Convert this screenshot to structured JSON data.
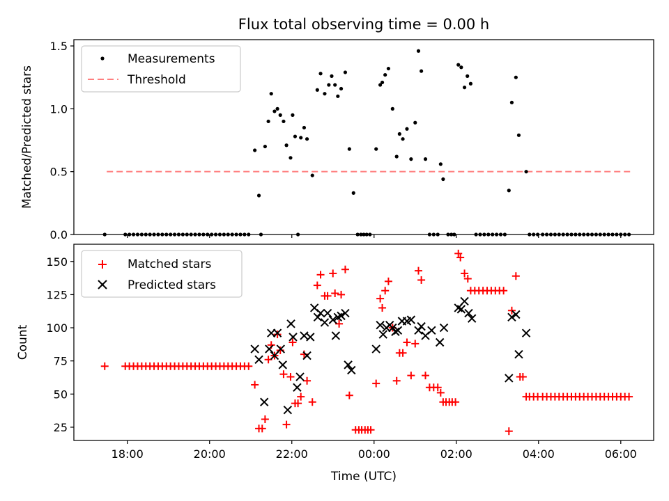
{
  "chart_data": {
    "title": "Flux total observing time = 0.00 h",
    "xlabel": "Time (UTC)",
    "x_unit": "hours since 00:00 UTC",
    "xlim": [
      -7.3,
      6.8
    ],
    "x_ticks": [
      {
        "label": "18:00",
        "value": -6
      },
      {
        "label": "20:00",
        "value": -4
      },
      {
        "label": "22:00",
        "value": -2
      },
      {
        "label": "00:00",
        "value": 0
      },
      {
        "label": "02:00",
        "value": 2
      },
      {
        "label": "04:00",
        "value": 4
      },
      {
        "label": "06:00",
        "value": 6
      }
    ],
    "top": {
      "type": "scatter",
      "ylabel": "Matched/Predicted stars",
      "ylim": [
        0,
        1.55
      ],
      "y_ticks": [
        {
          "label": "0.0",
          "value": 0
        },
        {
          "label": "0.5",
          "value": 0.5
        },
        {
          "label": "1.0",
          "value": 1.0
        },
        {
          "label": "1.5",
          "value": 1.5
        }
      ],
      "legend": {
        "position": "upper-left",
        "measurements_label": "Measurements",
        "threshold_label": "Threshold"
      },
      "threshold": {
        "value": 0.5,
        "x": [
          -6.5,
          6.25
        ],
        "color": "#ff7f7f"
      },
      "measurements": [
        [
          -6.55,
          0
        ],
        [
          -6.05,
          0
        ],
        [
          -5.95,
          0
        ],
        [
          -5.85,
          0
        ],
        [
          -5.75,
          0
        ],
        [
          -5.65,
          0
        ],
        [
          -5.55,
          0
        ],
        [
          -5.45,
          0
        ],
        [
          -5.35,
          0
        ],
        [
          -5.25,
          0
        ],
        [
          -5.15,
          0
        ],
        [
          -5.05,
          0
        ],
        [
          -4.95,
          0
        ],
        [
          -4.85,
          0
        ],
        [
          -4.75,
          0
        ],
        [
          -4.65,
          0
        ],
        [
          -4.55,
          0
        ],
        [
          -4.45,
          0
        ],
        [
          -4.35,
          0
        ],
        [
          -4.25,
          0
        ],
        [
          -4.15,
          0
        ],
        [
          -4.05,
          0
        ],
        [
          -3.95,
          0
        ],
        [
          -3.85,
          0
        ],
        [
          -3.75,
          0
        ],
        [
          -3.65,
          0
        ],
        [
          -3.55,
          0
        ],
        [
          -3.45,
          0
        ],
        [
          -3.35,
          0
        ],
        [
          -3.25,
          0
        ],
        [
          -3.15,
          0
        ],
        [
          -3.05,
          0
        ],
        [
          -2.9,
          0.67
        ],
        [
          -2.8,
          0.31
        ],
        [
          -2.75,
          0
        ],
        [
          -2.65,
          0.7
        ],
        [
          -2.57,
          0.9
        ],
        [
          -2.5,
          1.12
        ],
        [
          -2.42,
          0.98
        ],
        [
          -2.35,
          1.0
        ],
        [
          -2.28,
          0.95
        ],
        [
          -2.2,
          0.9
        ],
        [
          -2.13,
          0.71
        ],
        [
          -2.03,
          0.61
        ],
        [
          -1.98,
          0.95
        ],
        [
          -1.92,
          0.78
        ],
        [
          -1.85,
          0
        ],
        [
          -1.78,
          0.77
        ],
        [
          -1.7,
          0.85
        ],
        [
          -1.63,
          0.76
        ],
        [
          -1.5,
          0.47
        ],
        [
          -1.38,
          1.15
        ],
        [
          -1.3,
          1.28
        ],
        [
          -1.2,
          1.12
        ],
        [
          -1.1,
          1.19
        ],
        [
          -1.03,
          1.26
        ],
        [
          -0.95,
          1.19
        ],
        [
          -0.88,
          1.1
        ],
        [
          -0.8,
          1.16
        ],
        [
          -0.7,
          1.29
        ],
        [
          -0.6,
          0.68
        ],
        [
          -0.5,
          0.33
        ],
        [
          -0.4,
          0
        ],
        [
          -0.32,
          0
        ],
        [
          -0.25,
          0
        ],
        [
          -0.18,
          0
        ],
        [
          -0.1,
          0
        ],
        [
          0.05,
          0.68
        ],
        [
          0.15,
          1.19
        ],
        [
          0.2,
          1.21
        ],
        [
          0.27,
          1.27
        ],
        [
          0.35,
          1.32
        ],
        [
          0.45,
          1.0
        ],
        [
          0.55,
          0.62
        ],
        [
          0.62,
          0.8
        ],
        [
          0.7,
          0.76
        ],
        [
          0.8,
          0.84
        ],
        [
          0.9,
          0.6
        ],
        [
          1.0,
          0.89
        ],
        [
          1.08,
          1.46
        ],
        [
          1.15,
          1.3
        ],
        [
          1.25,
          0.6
        ],
        [
          1.35,
          0
        ],
        [
          1.45,
          0
        ],
        [
          1.55,
          0
        ],
        [
          1.62,
          0.56
        ],
        [
          1.68,
          0.44
        ],
        [
          1.8,
          0
        ],
        [
          1.88,
          0
        ],
        [
          1.95,
          0
        ],
        [
          2.05,
          1.35
        ],
        [
          2.12,
          1.33
        ],
        [
          2.2,
          1.17
        ],
        [
          2.27,
          1.26
        ],
        [
          2.35,
          1.2
        ],
        [
          2.48,
          0
        ],
        [
          2.58,
          0
        ],
        [
          2.68,
          0
        ],
        [
          2.78,
          0
        ],
        [
          2.88,
          0
        ],
        [
          2.98,
          0
        ],
        [
          3.08,
          0
        ],
        [
          3.18,
          0
        ],
        [
          3.28,
          0.35
        ],
        [
          3.35,
          1.05
        ],
        [
          3.45,
          1.25
        ],
        [
          3.52,
          0.79
        ],
        [
          3.7,
          0.5
        ],
        [
          3.78,
          0
        ],
        [
          3.88,
          0
        ],
        [
          3.98,
          0
        ],
        [
          4.1,
          0
        ],
        [
          4.2,
          0
        ],
        [
          4.3,
          0
        ],
        [
          4.4,
          0
        ],
        [
          4.5,
          0
        ],
        [
          4.6,
          0
        ],
        [
          4.7,
          0
        ],
        [
          4.8,
          0
        ],
        [
          4.9,
          0
        ],
        [
          5.0,
          0
        ],
        [
          5.1,
          0
        ],
        [
          5.2,
          0
        ],
        [
          5.3,
          0
        ],
        [
          5.4,
          0
        ],
        [
          5.5,
          0
        ],
        [
          5.6,
          0
        ],
        [
          5.7,
          0
        ],
        [
          5.8,
          0
        ],
        [
          5.9,
          0
        ],
        [
          6.0,
          0
        ],
        [
          6.1,
          0
        ],
        [
          6.2,
          0
        ]
      ]
    },
    "bottom": {
      "type": "scatter",
      "ylabel": "Count",
      "ylim": [
        15,
        163
      ],
      "y_ticks": [
        {
          "label": "25",
          "value": 25
        },
        {
          "label": "50",
          "value": 50
        },
        {
          "label": "75",
          "value": 75
        },
        {
          "label": "100",
          "value": 100
        },
        {
          "label": "125",
          "value": 125
        },
        {
          "label": "150",
          "value": 150
        }
      ],
      "legend": {
        "position": "upper-left",
        "matched_label": "Matched stars",
        "predicted_label": "Predicted stars"
      },
      "matched_color": "#ff0000",
      "predicted_color": "#000000",
      "matched": [
        [
          -6.55,
          71
        ],
        [
          -6.05,
          71
        ],
        [
          -5.95,
          71
        ],
        [
          -5.85,
          71
        ],
        [
          -5.75,
          71
        ],
        [
          -5.65,
          71
        ],
        [
          -5.55,
          71
        ],
        [
          -5.45,
          71
        ],
        [
          -5.35,
          71
        ],
        [
          -5.25,
          71
        ],
        [
          -5.15,
          71
        ],
        [
          -5.05,
          71
        ],
        [
          -4.95,
          71
        ],
        [
          -4.85,
          71
        ],
        [
          -4.75,
          71
        ],
        [
          -4.65,
          71
        ],
        [
          -4.55,
          71
        ],
        [
          -4.45,
          71
        ],
        [
          -4.35,
          71
        ],
        [
          -4.25,
          71
        ],
        [
          -4.15,
          71
        ],
        [
          -4.05,
          71
        ],
        [
          -3.95,
          71
        ],
        [
          -3.85,
          71
        ],
        [
          -3.75,
          71
        ],
        [
          -3.65,
          71
        ],
        [
          -3.55,
          71
        ],
        [
          -3.45,
          71
        ],
        [
          -3.35,
          71
        ],
        [
          -3.25,
          71
        ],
        [
          -3.15,
          71
        ],
        [
          -3.05,
          71
        ],
        [
          -2.9,
          57
        ],
        [
          -2.8,
          24
        ],
        [
          -2.72,
          24
        ],
        [
          -2.65,
          31
        ],
        [
          -2.57,
          76
        ],
        [
          -2.5,
          87
        ],
        [
          -2.42,
          79
        ],
        [
          -2.35,
          95
        ],
        [
          -2.28,
          83
        ],
        [
          -2.2,
          65
        ],
        [
          -2.13,
          27
        ],
        [
          -2.03,
          63
        ],
        [
          -1.98,
          89
        ],
        [
          -1.92,
          43
        ],
        [
          -1.85,
          43
        ],
        [
          -1.78,
          48
        ],
        [
          -1.7,
          80
        ],
        [
          -1.63,
          60
        ],
        [
          -1.5,
          44
        ],
        [
          -1.38,
          132
        ],
        [
          -1.3,
          140
        ],
        [
          -1.2,
          124
        ],
        [
          -1.13,
          124
        ],
        [
          -1.0,
          141
        ],
        [
          -0.95,
          126
        ],
        [
          -0.85,
          103
        ],
        [
          -0.8,
          125
        ],
        [
          -0.7,
          144
        ],
        [
          -0.6,
          49
        ],
        [
          -0.45,
          23
        ],
        [
          -0.37,
          23
        ],
        [
          -0.3,
          23
        ],
        [
          -0.22,
          23
        ],
        [
          -0.15,
          23
        ],
        [
          -0.08,
          23
        ],
        [
          0.05,
          58
        ],
        [
          0.15,
          122
        ],
        [
          0.2,
          115
        ],
        [
          0.27,
          128
        ],
        [
          0.35,
          135
        ],
        [
          0.45,
          100
        ],
        [
          0.55,
          60
        ],
        [
          0.62,
          81
        ],
        [
          0.7,
          81
        ],
        [
          0.8,
          89
        ],
        [
          0.9,
          64
        ],
        [
          1.0,
          88
        ],
        [
          1.08,
          143
        ],
        [
          1.15,
          136
        ],
        [
          1.25,
          64
        ],
        [
          1.35,
          55
        ],
        [
          1.45,
          55
        ],
        [
          1.55,
          55
        ],
        [
          1.62,
          51
        ],
        [
          1.68,
          44
        ],
        [
          1.75,
          44
        ],
        [
          1.83,
          44
        ],
        [
          1.9,
          44
        ],
        [
          1.98,
          44
        ],
        [
          2.05,
          156
        ],
        [
          2.1,
          153
        ],
        [
          2.2,
          141
        ],
        [
          2.28,
          137
        ],
        [
          2.35,
          128
        ],
        [
          2.45,
          128
        ],
        [
          2.55,
          128
        ],
        [
          2.65,
          128
        ],
        [
          2.75,
          128
        ],
        [
          2.85,
          128
        ],
        [
          2.95,
          128
        ],
        [
          3.05,
          128
        ],
        [
          3.15,
          128
        ],
        [
          3.28,
          22
        ],
        [
          3.35,
          113
        ],
        [
          3.45,
          139
        ],
        [
          3.55,
          63
        ],
        [
          3.62,
          63
        ],
        [
          3.7,
          48
        ],
        [
          3.78,
          48
        ],
        [
          3.88,
          48
        ],
        [
          3.98,
          48
        ],
        [
          4.1,
          48
        ],
        [
          4.2,
          48
        ],
        [
          4.3,
          48
        ],
        [
          4.4,
          48
        ],
        [
          4.5,
          48
        ],
        [
          4.6,
          48
        ],
        [
          4.7,
          48
        ],
        [
          4.8,
          48
        ],
        [
          4.9,
          48
        ],
        [
          5.0,
          48
        ],
        [
          5.1,
          48
        ],
        [
          5.2,
          48
        ],
        [
          5.3,
          48
        ],
        [
          5.4,
          48
        ],
        [
          5.5,
          48
        ],
        [
          5.6,
          48
        ],
        [
          5.7,
          48
        ],
        [
          5.8,
          48
        ],
        [
          5.9,
          48
        ],
        [
          6.0,
          48
        ],
        [
          6.1,
          48
        ],
        [
          6.2,
          48
        ]
      ],
      "predicted": [
        [
          -2.9,
          84
        ],
        [
          -2.8,
          76
        ],
        [
          -2.67,
          44
        ],
        [
          -2.55,
          84
        ],
        [
          -2.5,
          96
        ],
        [
          -2.42,
          79
        ],
        [
          -2.35,
          96
        ],
        [
          -2.27,
          84
        ],
        [
          -2.22,
          72
        ],
        [
          -2.1,
          38
        ],
        [
          -2.02,
          103
        ],
        [
          -1.97,
          93
        ],
        [
          -1.87,
          55
        ],
        [
          -1.8,
          63
        ],
        [
          -1.7,
          94
        ],
        [
          -1.63,
          79
        ],
        [
          -1.55,
          93
        ],
        [
          -1.45,
          115
        ],
        [
          -1.37,
          108
        ],
        [
          -1.3,
          111
        ],
        [
          -1.2,
          104
        ],
        [
          -1.13,
          111
        ],
        [
          -1.0,
          106
        ],
        [
          -0.93,
          94
        ],
        [
          -0.88,
          108
        ],
        [
          -0.8,
          109
        ],
        [
          -0.7,
          111
        ],
        [
          -0.63,
          72
        ],
        [
          -0.55,
          68
        ],
        [
          0.05,
          84
        ],
        [
          0.15,
          102
        ],
        [
          0.22,
          95
        ],
        [
          0.3,
          100
        ],
        [
          0.38,
          102
        ],
        [
          0.45,
          100
        ],
        [
          0.52,
          97
        ],
        [
          0.58,
          98
        ],
        [
          0.68,
          105
        ],
        [
          0.8,
          105
        ],
        [
          0.9,
          106
        ],
        [
          1.08,
          98
        ],
        [
          1.15,
          101
        ],
        [
          1.25,
          94
        ],
        [
          1.4,
          98
        ],
        [
          1.6,
          89
        ],
        [
          1.7,
          100
        ],
        [
          2.05,
          115
        ],
        [
          2.12,
          114
        ],
        [
          2.2,
          120
        ],
        [
          2.3,
          111
        ],
        [
          2.38,
          107
        ],
        [
          3.28,
          62
        ],
        [
          3.35,
          108
        ],
        [
          3.45,
          110
        ],
        [
          3.52,
          80
        ],
        [
          3.7,
          96
        ]
      ]
    }
  }
}
